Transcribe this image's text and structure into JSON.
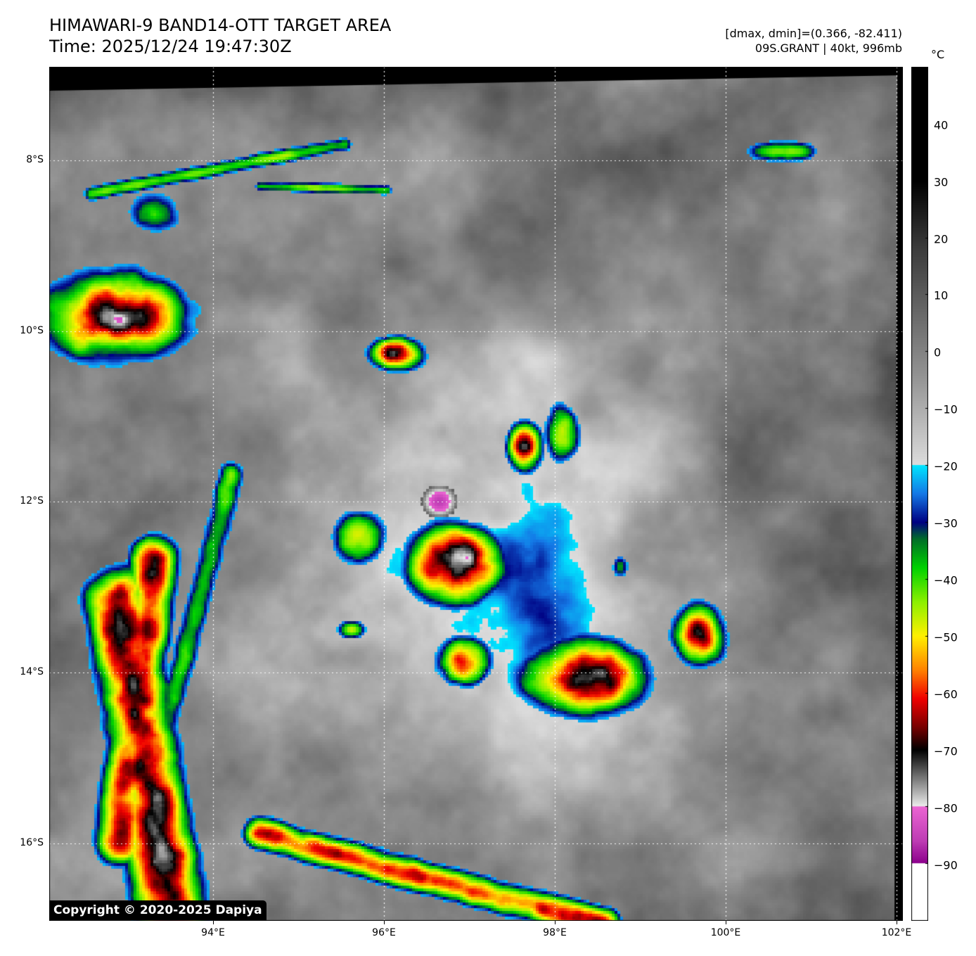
{
  "title": {
    "line1": "HIMAWARI-9 BAND14-OTT TARGET AREA",
    "line2": "Time: 2025/12/24 19:47:30Z"
  },
  "info": {
    "dmax_dmin": "[dmax, dmin]=(0.366, -82.411)",
    "storm": "09S.GRANT | 40kt, 996mb"
  },
  "axes": {
    "lat_labels": [
      "8°S",
      "10°S",
      "12°S",
      "14°S",
      "16°S"
    ],
    "lon_labels": [
      "94°E",
      "96°E",
      "98°E",
      "100°E",
      "102°E"
    ]
  },
  "colorbar": {
    "unit": "°C",
    "labels": [
      "40",
      "30",
      "20",
      "10",
      "0",
      "−10",
      "−20",
      "−30",
      "−40",
      "−50",
      "−60",
      "−70",
      "−80",
      "−90"
    ],
    "range": [
      -100,
      50
    ]
  },
  "copyright": "Copyright © 2020-2025 Dapiya"
}
